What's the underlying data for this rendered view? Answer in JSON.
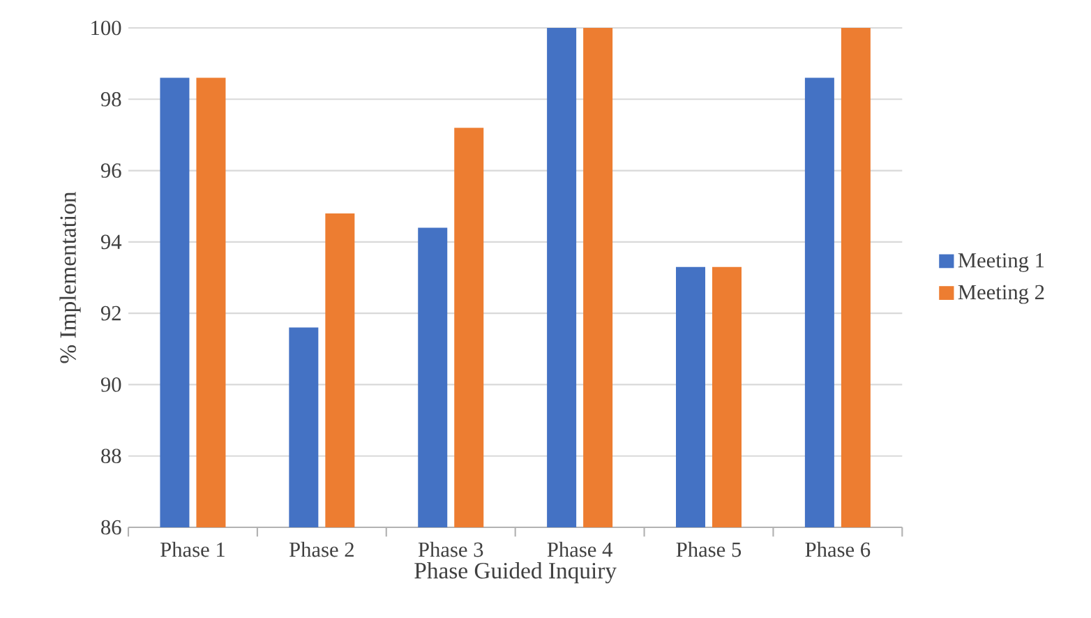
{
  "chart_data": {
    "type": "bar",
    "xlabel": "Phase Guided Inquiry",
    "ylabel": "% Implementation",
    "categories": [
      "Phase 1",
      "Phase 2",
      "Phase 3",
      "Phase 4",
      "Phase 5",
      "Phase 6"
    ],
    "series": [
      {
        "name": "Meeting 1",
        "color": "#4472c4",
        "values": [
          98.6,
          91.6,
          94.4,
          100,
          93.3,
          98.6
        ]
      },
      {
        "name": "Meeting 2",
        "color": "#ed7d31",
        "values": [
          98.6,
          94.8,
          97.2,
          100,
          93.3,
          100
        ]
      }
    ],
    "ylim": [
      86,
      100
    ],
    "yticks": [
      86,
      88,
      90,
      92,
      94,
      96,
      98,
      100
    ],
    "grid": "y",
    "legend": "right"
  }
}
